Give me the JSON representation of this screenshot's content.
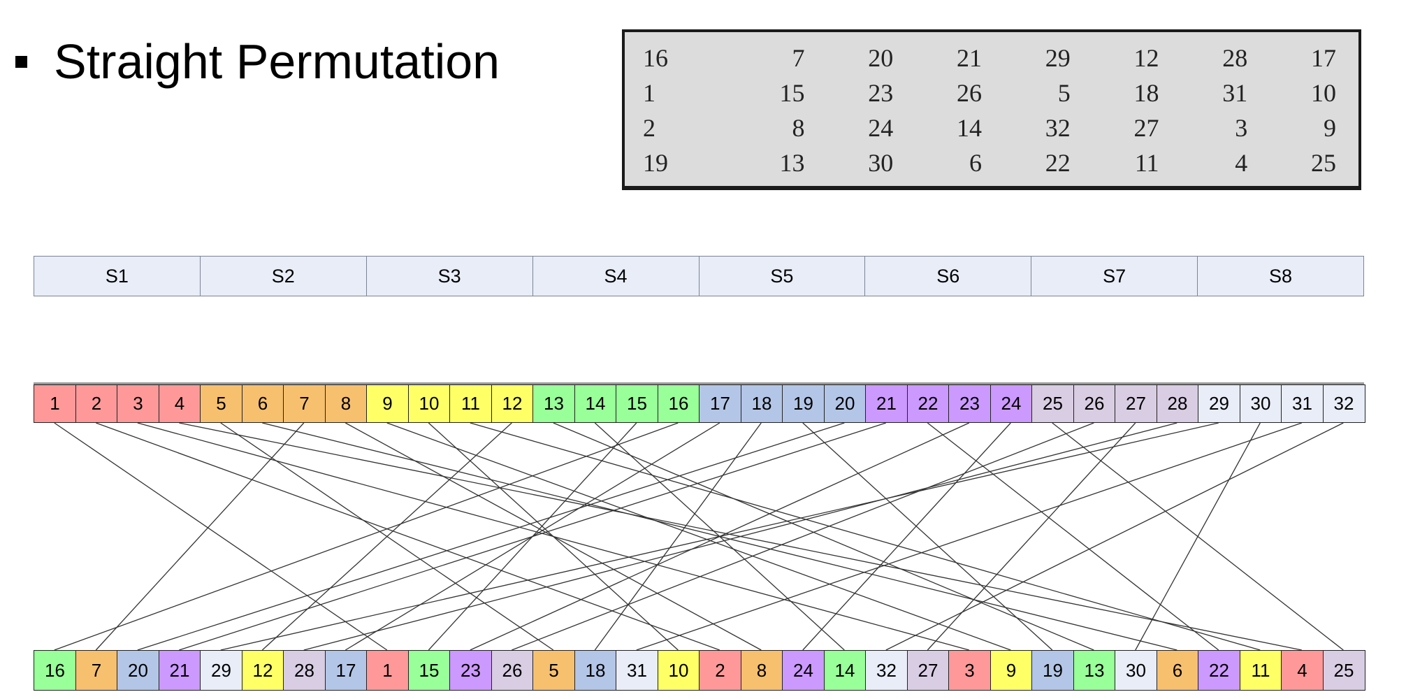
{
  "heading": {
    "text": "Straight Permutation"
  },
  "table": {
    "rows": [
      [
        16,
        7,
        20,
        21,
        29,
        12,
        28,
        17
      ],
      [
        1,
        15,
        23,
        26,
        5,
        18,
        31,
        10
      ],
      [
        2,
        8,
        24,
        14,
        32,
        27,
        3,
        9
      ],
      [
        19,
        13,
        30,
        6,
        22,
        11,
        4,
        25
      ]
    ]
  },
  "sboxes": [
    "S1",
    "S2",
    "S3",
    "S4",
    "S5",
    "S6",
    "S7",
    "S8"
  ],
  "colors": [
    "#ff9999",
    "#f7c06f",
    "#ffff66",
    "#99ff99",
    "#b4c6e7",
    "#cc99ff",
    "#d9cde3",
    "#e8edf7"
  ],
  "input_bits": [
    1,
    2,
    3,
    4,
    5,
    6,
    7,
    8,
    9,
    10,
    11,
    12,
    13,
    14,
    15,
    16,
    17,
    18,
    19,
    20,
    21,
    22,
    23,
    24,
    25,
    26,
    27,
    28,
    29,
    30,
    31,
    32
  ],
  "output_bits": [
    16,
    7,
    20,
    21,
    29,
    12,
    28,
    17,
    1,
    15,
    23,
    26,
    5,
    18,
    31,
    10,
    2,
    8,
    24,
    14,
    32,
    27,
    3,
    9,
    19,
    13,
    30,
    6,
    22,
    11,
    4,
    25
  ]
}
